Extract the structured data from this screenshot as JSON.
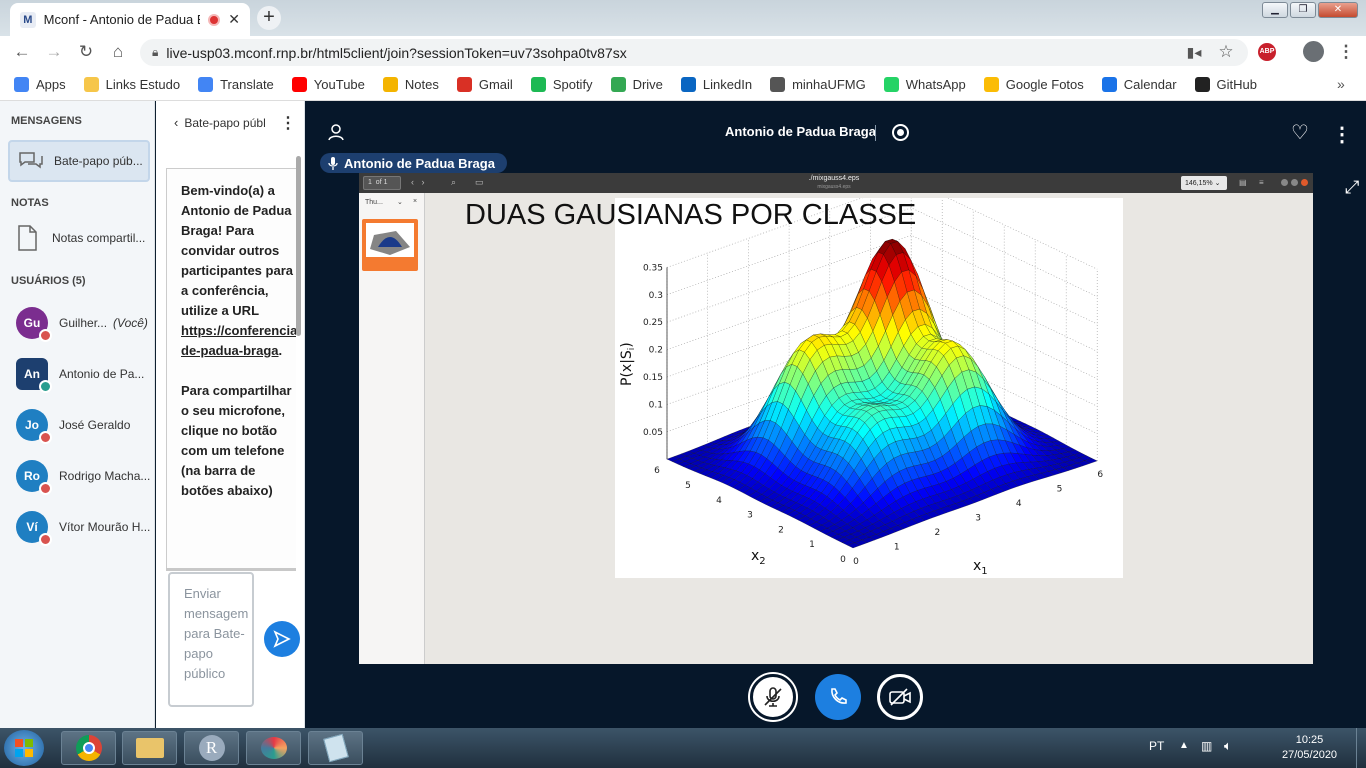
{
  "browser": {
    "tab_title": "Mconf - Antonio de Padua B",
    "url": "live-usp03.mconf.rnp.br/html5client/join?sessionToken=uv73sohpa0tv87sx",
    "abp": "ABP",
    "bookmarks": [
      {
        "label": "Apps",
        "icon": "apps-grid-icon",
        "color": "#4285f4"
      },
      {
        "label": "Links Estudo",
        "icon": "folder-icon",
        "color": "#f6c64a"
      },
      {
        "label": "Translate",
        "icon": "translate-icon",
        "color": "#4285f4"
      },
      {
        "label": "YouTube",
        "icon": "youtube-icon",
        "color": "#ff0000"
      },
      {
        "label": "Notes",
        "icon": "notes-icon",
        "color": "#f4b400"
      },
      {
        "label": "Gmail",
        "icon": "gmail-icon",
        "color": "#d93025"
      },
      {
        "label": "Spotify",
        "icon": "spotify-icon",
        "color": "#1db954"
      },
      {
        "label": "Drive",
        "icon": "drive-icon",
        "color": "#34a853"
      },
      {
        "label": "LinkedIn",
        "icon": "linkedin-icon",
        "color": "#0a66c2"
      },
      {
        "label": "minhaUFMG",
        "icon": "globe-icon",
        "color": "#555555"
      },
      {
        "label": "WhatsApp",
        "icon": "whatsapp-icon",
        "color": "#25d366"
      },
      {
        "label": "Google Fotos",
        "icon": "photos-icon",
        "color": "#fbbc05"
      },
      {
        "label": "Calendar",
        "icon": "calendar-icon",
        "color": "#1a73e8"
      },
      {
        "label": "GitHub",
        "icon": "github-icon",
        "color": "#222222"
      }
    ]
  },
  "sidebar": {
    "messages_heading": "MENSAGENS",
    "public_chat": "Bate-papo púb...",
    "notes_heading": "NOTAS",
    "shared_notes": "Notas compartil...",
    "users_heading": "USUÁRIOS (5)",
    "users": [
      {
        "initials": "Gu",
        "name": "Guilher...",
        "you": "(Você)",
        "color": "#7b2d8f"
      },
      {
        "initials": "An",
        "name": "Antonio de Pa...",
        "you": "",
        "color": "#1d3f6f"
      },
      {
        "initials": "Jo",
        "name": "José Geraldo",
        "you": "",
        "color": "#1f7fc2"
      },
      {
        "initials": "Ro",
        "name": "Rodrigo Macha...",
        "you": "",
        "color": "#1f7fc2"
      },
      {
        "initials": "Ví",
        "name": "Vítor Mourão H...",
        "you": "",
        "color": "#1f7fc2"
      }
    ]
  },
  "chat": {
    "title": "Bate-papo públ",
    "welcome_1": "Bem-vindo(a) a Antonio de Padua Braga! Para convidar outros participantes para a conferência, utilize a URL ",
    "link": "https://conferencia-de-padua-braga",
    "welcome_2": ".",
    "share_text": "Para compartilhar o seu microfone, clique no botão com um telefone (na barra de botões abaixo)",
    "placeholder": "Enviar mensagem para Bate-papo público"
  },
  "main": {
    "presenter": "Antonio de Padua Braga",
    "speaking": "Antonio de Padua Braga"
  },
  "viewer": {
    "page": "1",
    "of_pages": "of 1",
    "file": "./mixgauss4.eps",
    "file_sub": "mixgauss4.eps",
    "zoom": "146,15%",
    "thumbs_label": "Thu...",
    "slide_title": "DUAS GAUSIANAS POR CLASSE"
  },
  "chart_data": {
    "type": "surface",
    "title": "",
    "zlabel": "P(x|S",
    "zlabel_sub": "i",
    "zlabel_close": ")",
    "xlabel": "x",
    "xlabel_sub": "1",
    "ylabel": "x",
    "ylabel_sub": "2",
    "z_ticks": [
      "0.05",
      "0.1",
      "0.15",
      "0.2",
      "0.25",
      "0.3",
      "0.35"
    ],
    "x_ticks": [
      "0",
      "1",
      "2",
      "3",
      "4",
      "5",
      "6"
    ],
    "y_ticks": [
      "0",
      "1",
      "2",
      "3",
      "4",
      "5",
      "6"
    ],
    "xlim": [
      0,
      6
    ],
    "ylim": [
      0,
      6
    ],
    "zlim": [
      0,
      0.35
    ],
    "grid": true,
    "colormap": "jet",
    "peaks": [
      {
        "x1": 4,
        "x2": 4,
        "height": 0.34
      },
      {
        "x1": 2,
        "x2": 4,
        "height": 0.21
      },
      {
        "x1": 4,
        "x2": 2,
        "height": 0.2
      },
      {
        "x1": 2,
        "x2": 2,
        "height": 0.13
      }
    ]
  },
  "taskbar": {
    "lang": "PT",
    "time": "10:25",
    "date": "27/05/2020",
    "apps": [
      "chrome-icon",
      "explorer-icon",
      "r-icon",
      "paint-icon",
      "notepad-icon"
    ]
  }
}
